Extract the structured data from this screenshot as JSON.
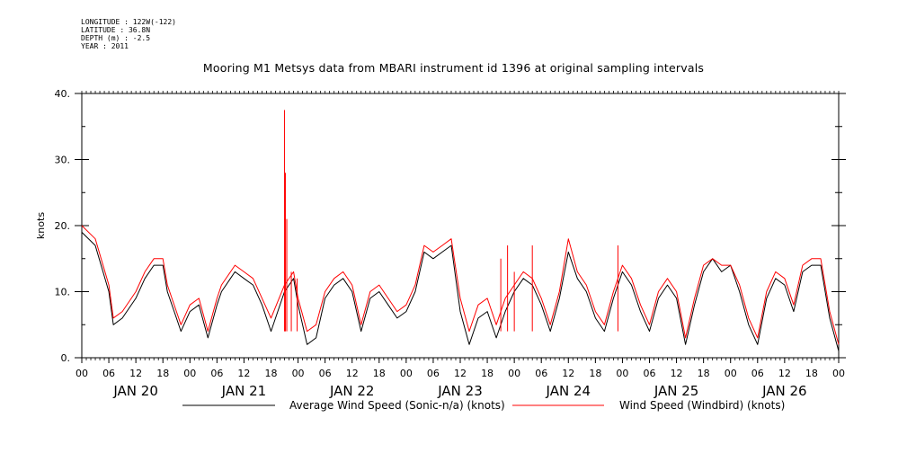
{
  "meta": {
    "longitude": "LONGITUDE : 122W(-122)",
    "latitude": "LATITUDE : 36.8N",
    "depth": "DEPTH (m) : -2.5",
    "year": "YEAR : 2011"
  },
  "chart_data": {
    "type": "line",
    "title": "Mooring M1 Metsys data from MBARI instrument id 1396 at original sampling intervals",
    "ylabel": "knots",
    "xlabel": "",
    "ylim": [
      0,
      40
    ],
    "xlim_hours": [
      0,
      168
    ],
    "y_ticks": [
      0,
      10,
      20,
      30,
      40
    ],
    "y_tick_labels": [
      "0.",
      "10.",
      "20.",
      "30.",
      "40."
    ],
    "x_hour_ticks": [
      "00",
      "06",
      "12",
      "18",
      "00",
      "06",
      "12",
      "18",
      "00",
      "06",
      "12",
      "18",
      "00",
      "06",
      "12",
      "18",
      "00",
      "06",
      "12",
      "18",
      "00",
      "06",
      "12",
      "18",
      "00",
      "06",
      "12",
      "18",
      "00"
    ],
    "day_labels": [
      "JAN 20",
      "JAN 21",
      "JAN 22",
      "JAN 23",
      "JAN 24",
      "JAN 25",
      "JAN 26"
    ],
    "grid": false,
    "legend_position": "bottom",
    "series": [
      {
        "name": "Average Wind Speed (Sonic-n/a) (knots)",
        "color": "#000000",
        "x_hours": [
          0,
          3,
          6,
          7,
          9,
          12,
          14,
          16,
          18,
          19,
          21,
          22,
          24,
          26,
          28,
          30,
          31,
          34,
          36,
          38,
          40,
          42,
          45,
          47,
          48,
          50,
          52,
          54,
          56,
          58,
          60,
          62,
          64,
          66,
          68,
          70,
          72,
          74,
          76,
          78,
          80,
          82,
          84,
          86,
          88,
          90,
          92,
          94,
          96,
          98,
          100,
          102,
          104,
          106,
          108,
          110,
          112,
          114,
          116,
          118,
          120,
          122,
          124,
          126,
          128,
          130,
          132,
          134,
          136,
          138,
          140,
          142,
          144,
          146,
          148,
          150,
          152,
          154,
          156,
          158,
          160,
          162,
          164,
          166,
          168
        ],
        "values": [
          19,
          17,
          10,
          5,
          6,
          9,
          12,
          14,
          14,
          10,
          6,
          4,
          7,
          8,
          3,
          8,
          10,
          13,
          12,
          11,
          8,
          4,
          10,
          12,
          8,
          2,
          3,
          9,
          11,
          12,
          10,
          4,
          9,
          10,
          8,
          6,
          7,
          10,
          16,
          15,
          16,
          17,
          7,
          2,
          6,
          7,
          3,
          7,
          10,
          12,
          11,
          8,
          4,
          9,
          16,
          12,
          10,
          6,
          4,
          9,
          13,
          11,
          7,
          4,
          9,
          11,
          9,
          2,
          8,
          13,
          15,
          13,
          14,
          10,
          5,
          2,
          9,
          12,
          11,
          7,
          13,
          14,
          14,
          6,
          1
        ]
      },
      {
        "name": "Wind Speed (Windbird) (knots)",
        "color": "#ff0000",
        "x_hours": [
          0,
          3,
          6,
          7,
          9,
          12,
          14,
          16,
          18,
          19,
          21,
          22,
          24,
          26,
          28,
          30,
          31,
          34,
          36,
          38,
          40,
          42,
          45,
          47,
          48,
          50,
          52,
          54,
          56,
          58,
          60,
          62,
          64,
          66,
          68,
          70,
          72,
          74,
          76,
          78,
          80,
          82,
          84,
          86,
          88,
          90,
          92,
          94,
          96,
          98,
          100,
          102,
          104,
          106,
          108,
          110,
          112,
          114,
          116,
          118,
          120,
          122,
          124,
          126,
          128,
          130,
          132,
          134,
          136,
          138,
          140,
          142,
          144,
          146,
          148,
          150,
          152,
          154,
          156,
          158,
          160,
          162,
          164,
          166,
          168
        ],
        "values": [
          20,
          18,
          11,
          6,
          7,
          10,
          13,
          15,
          15,
          11,
          7,
          5,
          8,
          9,
          4,
          9,
          11,
          14,
          13,
          12,
          9,
          6,
          11,
          13,
          9,
          4,
          5,
          10,
          12,
          13,
          11,
          5,
          10,
          11,
          9,
          7,
          8,
          11,
          17,
          16,
          17,
          18,
          9,
          4,
          8,
          9,
          5,
          9,
          11,
          13,
          12,
          9,
          5,
          10,
          18,
          13,
          11,
          7,
          5,
          10,
          14,
          12,
          8,
          5,
          10,
          12,
          10,
          3,
          9,
          14,
          15,
          14,
          14,
          11,
          6,
          3,
          10,
          13,
          12,
          8,
          14,
          15,
          15,
          7,
          2
        ],
        "spikes": [
          [
            45,
            37.5
          ],
          [
            45.2,
            28
          ],
          [
            45.5,
            21
          ],
          [
            46.5,
            13
          ],
          [
            47.8,
            12
          ],
          [
            93,
            15
          ],
          [
            94.5,
            17
          ],
          [
            96,
            13
          ],
          [
            100,
            17
          ],
          [
            119,
            17
          ]
        ]
      }
    ]
  }
}
